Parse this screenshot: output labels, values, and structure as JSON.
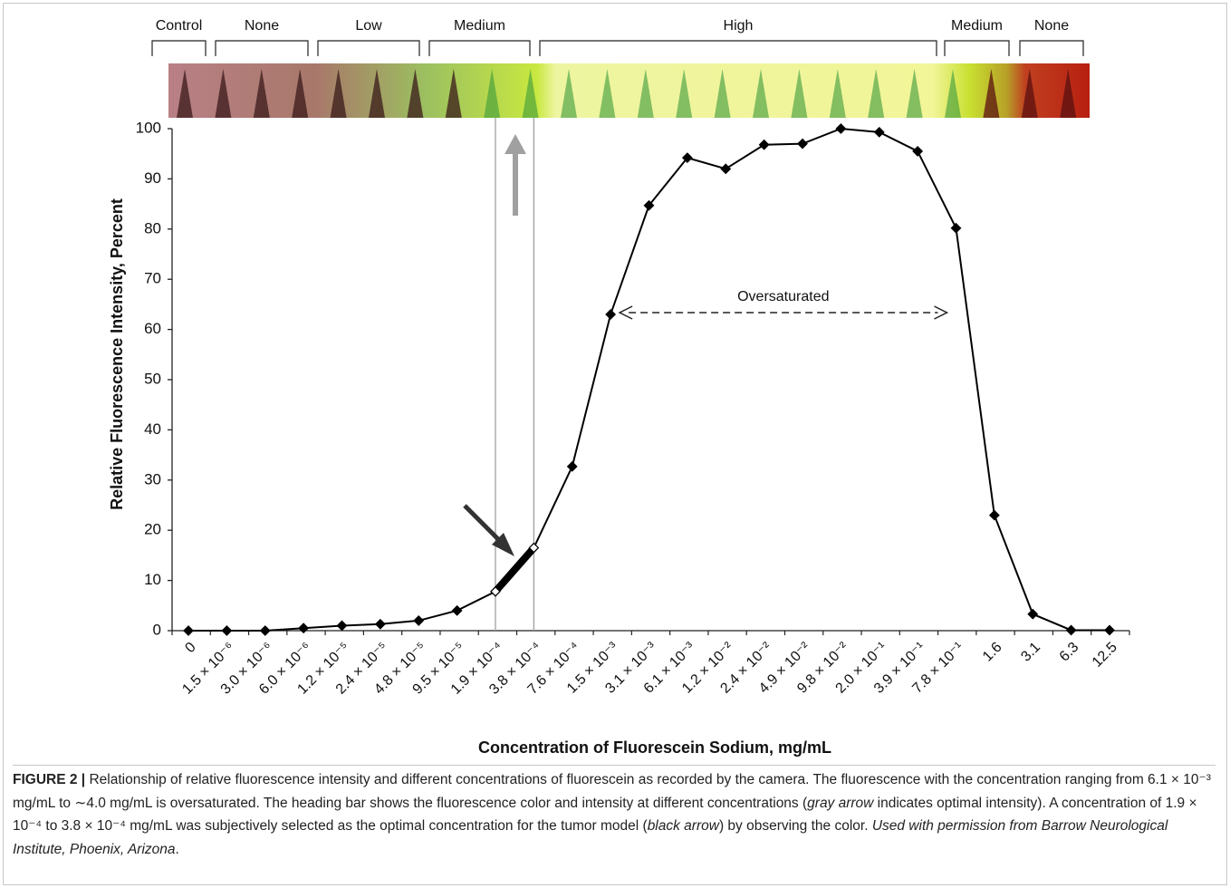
{
  "chart_data": {
    "type": "line",
    "header_bands": [
      "Control",
      "None",
      "Low",
      "Medium",
      "High",
      "Medium",
      "None"
    ],
    "categories": [
      "0",
      "1.5 × 10⁻⁶",
      "3.0 × 10⁻⁶",
      "6.0 × 10⁻⁶",
      "1.2 × 10⁻⁵",
      "2.4 × 10⁻⁵",
      "4.8 × 10⁻⁵",
      "9.5 × 10⁻⁵",
      "1.9 × 10⁻⁴",
      "3.8 × 10⁻⁴",
      "7.6 × 10⁻⁴",
      "1.5 × 10⁻³",
      "3.1 × 10⁻³",
      "6.1 × 10⁻³",
      "1.2 × 10⁻²",
      "2.4 × 10⁻²",
      "4.9 × 10⁻²",
      "9.8 × 10⁻²",
      "2.0 × 10⁻¹",
      "3.9 × 10⁻¹",
      "7.8 × 10⁻¹",
      "1.6",
      "3.1",
      "6.3",
      "12.5"
    ],
    "values": [
      0,
      0,
      0,
      0.5,
      1,
      1.3,
      2,
      4,
      7.8,
      16.5,
      32.7,
      63,
      84.7,
      94.2,
      92,
      96.8,
      97,
      100,
      99.3,
      95.5,
      80.2,
      23,
      3.3,
      0.1,
      0.1
    ],
    "color": "#000000",
    "ylabel": "Relative Fluorescence Intensity, Percent",
    "xlabel": "Concentration of Fluorescein Sodium, mg/mL",
    "ylim": [
      0,
      100
    ],
    "yticks": [
      0,
      10,
      20,
      30,
      40,
      50,
      60,
      70,
      80,
      90,
      100
    ],
    "annotation": "Oversaturated"
  },
  "caption": {
    "label": "FIGURE 2 |",
    "segments": [
      " Relationship of relative fluorescence intensity and different concentrations of fluorescein as recorded by the camera. The fluorescence with the concentration ranging from 6.1 × 10⁻³ mg/mL to ∼4.0 mg/mL is oversaturated. The heading bar shows the fluorescence color and intensity at different concentrations (",
      "gray arrow",
      " indicates optimal intensity). A concentration of 1.9 × 10⁻⁴ to 3.8 × 10⁻⁴ mg/mL was subjectively selected as the optimal concentration for the tumor model (",
      "black arrow",
      ") by observing the color. ",
      "Used with permission from Barrow Neurological Institute, Phoenix, Arizona",
      "."
    ]
  }
}
